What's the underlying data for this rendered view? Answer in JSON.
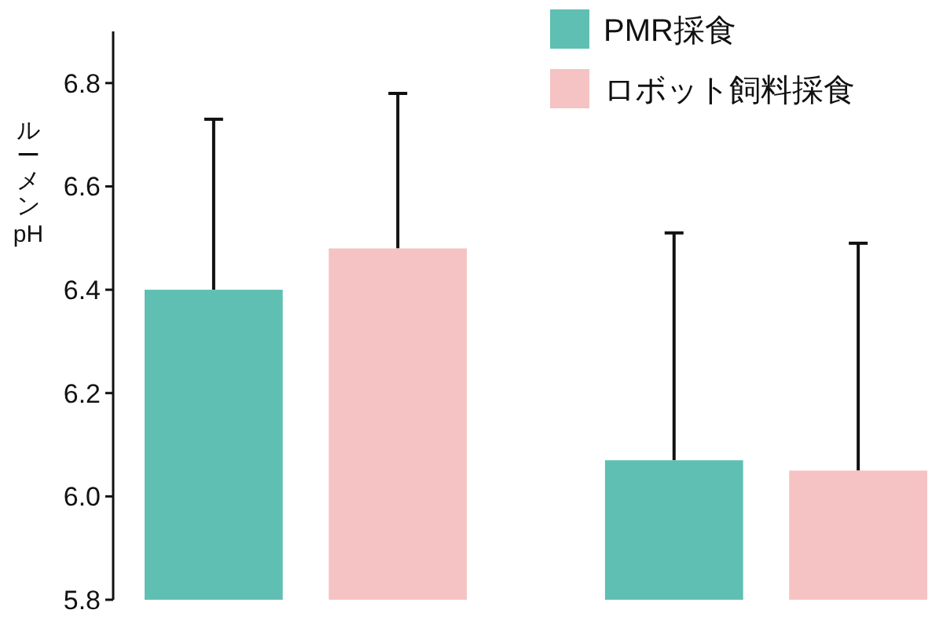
{
  "chart_data": {
    "type": "bar",
    "ylabel": "ルーメンpH",
    "categories": [
      null,
      null
    ],
    "series": [
      {
        "name": "PMR採食",
        "color": "#5fbfb3",
        "values": [
          6.4,
          6.07
        ],
        "errors": [
          0.33,
          0.44
        ]
      },
      {
        "name": "ロボット飼料採食",
        "color": "#f5c3c3",
        "values": [
          6.48,
          6.05
        ],
        "errors": [
          0.3,
          0.44
        ]
      }
    ],
    "ylim": [
      5.8,
      6.9
    ],
    "yticks": [
      {
        "value": 5.8,
        "label": "5.8"
      },
      {
        "value": 6.0,
        "label": "6.0"
      },
      {
        "value": 6.2,
        "label": "6.2"
      },
      {
        "value": 6.4,
        "label": "6.4"
      },
      {
        "value": 6.6,
        "label": "6.6"
      },
      {
        "value": 6.8,
        "label": "6.8"
      }
    ],
    "grid": false,
    "legend": "top right"
  }
}
